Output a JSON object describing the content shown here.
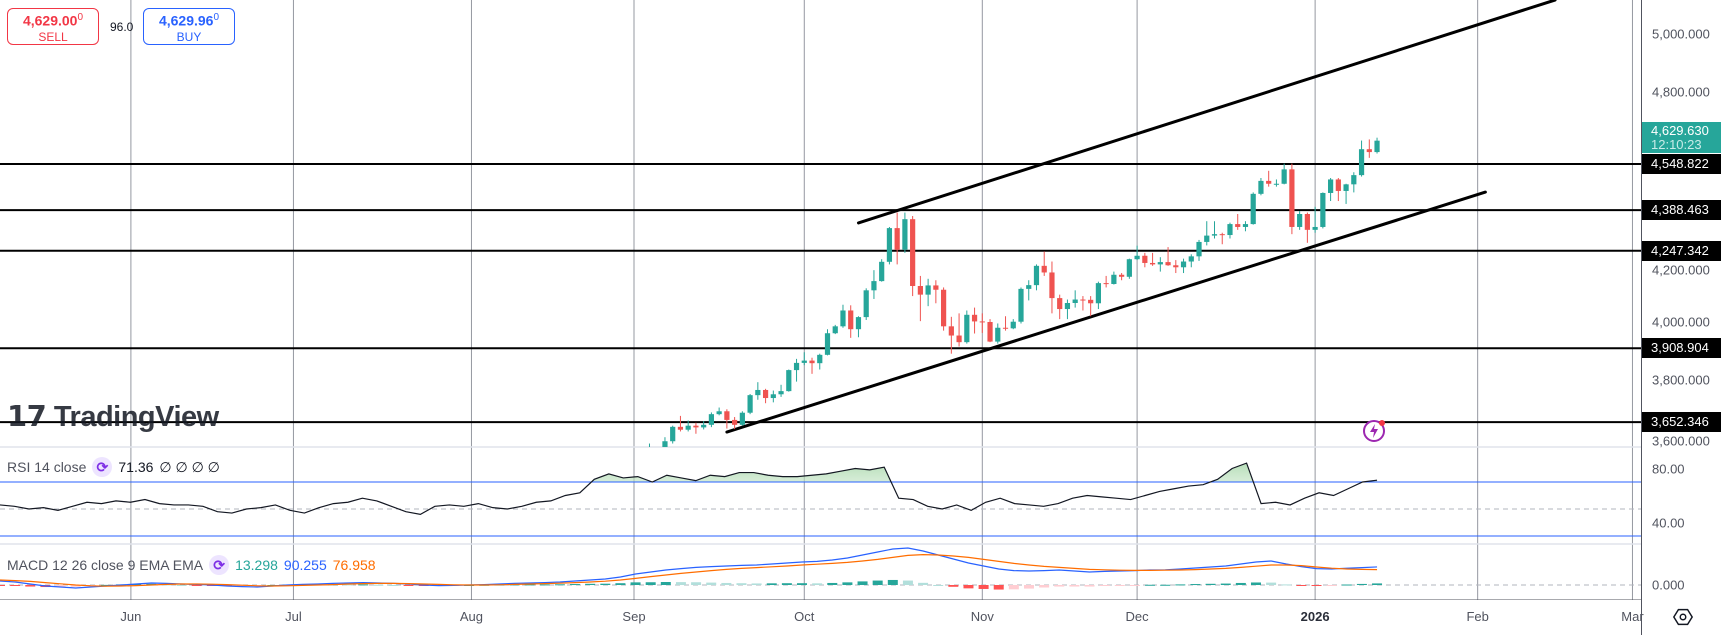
{
  "trade": {
    "sell_price": "4,629.00",
    "sell_price_sup": "0",
    "sell_label": "SELL",
    "spread": "96.0",
    "buy_price": "4,629.96",
    "buy_price_sup": "0",
    "buy_label": "BUY"
  },
  "current_price": {
    "value": "4,629.630",
    "countdown": "12:10:23",
    "color": "#26a69a"
  },
  "price_axis_ticks": [
    "5,000.000",
    "4,800.000",
    "4,200.000",
    "4,000.000",
    "3,800.000",
    "3,600.000"
  ],
  "price_axis_tick_values": [
    5000,
    4800,
    4200,
    4000,
    3800,
    3600
  ],
  "horizontal_levels": [
    {
      "value": 4548.822,
      "label": "4,548.822"
    },
    {
      "value": 4388.463,
      "label": "4,388.463"
    },
    {
      "value": 4247.342,
      "label": "4,247.342"
    },
    {
      "value": 3908.904,
      "label": "3,908.904"
    },
    {
      "value": 3652.346,
      "label": "3,652.346"
    }
  ],
  "rsi": {
    "name": "RSI 14 close",
    "value": "71.36",
    "extra": "∅ ∅ ∅ ∅",
    "axis_ticks": [
      "80.00",
      "40.00"
    ],
    "axis_tick_values": [
      80,
      40
    ],
    "bands": [
      70,
      50,
      30
    ]
  },
  "macd": {
    "name": "MACD 12 26 close 9 EMA EMA",
    "hist_value": "13.298",
    "macd_value": "90.255",
    "signal_value": "76.958",
    "axis_ticks": [
      "0.000"
    ],
    "axis_tick_values": [
      0
    ]
  },
  "time_axis": [
    {
      "label": "Jun",
      "date": "2025-06-02"
    },
    {
      "label": "Jul",
      "date": "2025-07-01"
    },
    {
      "label": "Aug",
      "date": "2025-08-01"
    },
    {
      "label": "Sep",
      "date": "2025-09-01"
    },
    {
      "label": "Oct",
      "date": "2025-10-01"
    },
    {
      "label": "Nov",
      "date": "2025-11-03"
    },
    {
      "label": "Dec",
      "date": "2025-12-01"
    },
    {
      "label": "2026",
      "date": "2026-01-02",
      "bold": true
    },
    {
      "label": "Feb",
      "date": "2026-02-02"
    },
    {
      "label": "Mar",
      "date": "2026-03-02"
    }
  ],
  "watermark": "TradingView",
  "icons": {
    "indicator": "cycle-icon",
    "alert": "lightning-icon",
    "settings": "gear-icon"
  },
  "colors": {
    "up": "#26a69a",
    "down": "#ef5350",
    "rsi_band": "#2962ff",
    "macd": "#2962ff",
    "signal": "#ff6d00",
    "sell": "#f23645",
    "buy": "#2962ff"
  },
  "chart_data": {
    "type": "candlestick",
    "price_range": [
      3600,
      5000
    ],
    "trendlines": [
      {
        "from": {
          "date": "2025-10-10",
          "price": 4344
        },
        "to": {
          "date": "2026-02-16",
          "price": 5118
        }
      },
      {
        "from": {
          "date": "2025-09-17",
          "price": 3618
        },
        "to": {
          "date": "2026-02-03",
          "price": 4451
        }
      }
    ],
    "candles": [
      [
        "2025-09-01",
        3448,
        3490,
        3436,
        3476
      ],
      [
        "2025-09-02",
        3476,
        3540,
        3470,
        3533
      ],
      [
        "2025-09-03",
        3533,
        3578,
        3525,
        3560
      ],
      [
        "2025-09-04",
        3560,
        3566,
        3511,
        3545
      ],
      [
        "2025-09-05",
        3545,
        3600,
        3540,
        3586
      ],
      [
        "2025-09-08",
        3586,
        3640,
        3578,
        3636
      ],
      [
        "2025-09-09",
        3636,
        3674,
        3620,
        3626
      ],
      [
        "2025-09-10",
        3626,
        3658,
        3620,
        3640
      ],
      [
        "2025-09-11",
        3640,
        3650,
        3612,
        3634
      ],
      [
        "2025-09-12",
        3634,
        3656,
        3627,
        3643
      ],
      [
        "2025-09-15",
        3643,
        3686,
        3635,
        3680
      ],
      [
        "2025-09-16",
        3680,
        3703,
        3676,
        3690
      ],
      [
        "2025-09-17",
        3690,
        3697,
        3630,
        3660
      ],
      [
        "2025-09-18",
        3660,
        3670,
        3628,
        3643
      ],
      [
        "2025-09-19",
        3643,
        3690,
        3640,
        3685
      ],
      [
        "2025-09-22",
        3685,
        3750,
        3680,
        3746
      ],
      [
        "2025-09-23",
        3746,
        3791,
        3730,
        3764
      ],
      [
        "2025-09-24",
        3764,
        3768,
        3718,
        3736
      ],
      [
        "2025-09-25",
        3736,
        3762,
        3721,
        3749
      ],
      [
        "2025-09-26",
        3749,
        3782,
        3740,
        3760
      ],
      [
        "2025-09-29",
        3760,
        3835,
        3758,
        3833
      ],
      [
        "2025-09-30",
        3833,
        3872,
        3793,
        3858
      ],
      [
        "2025-10-01",
        3858,
        3895,
        3850,
        3866
      ],
      [
        "2025-10-02",
        3866,
        3876,
        3820,
        3857
      ],
      [
        "2025-10-03",
        3857,
        3890,
        3835,
        3886
      ],
      [
        "2025-10-06",
        3886,
        3975,
        3884,
        3961
      ],
      [
        "2025-10-07",
        3961,
        3990,
        3958,
        3985
      ],
      [
        "2025-10-08",
        3985,
        4060,
        3980,
        4040
      ],
      [
        "2025-10-09",
        4040,
        4058,
        3945,
        3975
      ],
      [
        "2025-10-10",
        3975,
        4020,
        3947,
        4017
      ],
      [
        "2025-10-13",
        4017,
        4117,
        4007,
        4110
      ],
      [
        "2025-10-14",
        4110,
        4180,
        4080,
        4142
      ],
      [
        "2025-10-15",
        4142,
        4218,
        4140,
        4209
      ],
      [
        "2025-10-16",
        4209,
        4330,
        4200,
        4326
      ],
      [
        "2025-10-17",
        4326,
        4380,
        4200,
        4251
      ],
      [
        "2025-10-20",
        4251,
        4380,
        4240,
        4357
      ],
      [
        "2025-10-21",
        4357,
        4368,
        4090,
        4125
      ],
      [
        "2025-10-22",
        4125,
        4160,
        4003,
        4095
      ],
      [
        "2025-10-23",
        4095,
        4150,
        4055,
        4127
      ],
      [
        "2025-10-24",
        4127,
        4145,
        4065,
        4112
      ],
      [
        "2025-10-27",
        4112,
        4120,
        3970,
        3985
      ],
      [
        "2025-10-28",
        3985,
        4018,
        3890,
        3953
      ],
      [
        "2025-10-29",
        3953,
        4030,
        3915,
        3930
      ],
      [
        "2025-10-30",
        3930,
        4040,
        3925,
        4025
      ],
      [
        "2025-10-31",
        4025,
        4050,
        3960,
        4002
      ],
      [
        "2025-11-03",
        4002,
        4030,
        3962,
        4000
      ],
      [
        "2025-11-04",
        4000,
        4010,
        3930,
        3932
      ],
      [
        "2025-11-05",
        3932,
        3995,
        3925,
        3980
      ],
      [
        "2025-11-06",
        3980,
        4020,
        3970,
        3978
      ],
      [
        "2025-11-07",
        3978,
        4010,
        3975,
        4001
      ],
      [
        "2025-11-10",
        4001,
        4120,
        3995,
        4115
      ],
      [
        "2025-11-11",
        4115,
        4145,
        4075,
        4128
      ],
      [
        "2025-11-12",
        4128,
        4200,
        4110,
        4195
      ],
      [
        "2025-11-13",
        4195,
        4245,
        4160,
        4172
      ],
      [
        "2025-11-14",
        4172,
        4210,
        4030,
        4083
      ],
      [
        "2025-11-17",
        4083,
        4095,
        4010,
        4045
      ],
      [
        "2025-11-18",
        4045,
        4078,
        4010,
        4066
      ],
      [
        "2025-11-19",
        4066,
        4110,
        4050,
        4078
      ],
      [
        "2025-11-20",
        4078,
        4090,
        4040,
        4077
      ],
      [
        "2025-11-21",
        4077,
        4090,
        4020,
        4065
      ],
      [
        "2025-11-24",
        4065,
        4140,
        4045,
        4135
      ],
      [
        "2025-11-25",
        4135,
        4160,
        4120,
        4132
      ],
      [
        "2025-11-26",
        4132,
        4175,
        4130,
        4164
      ],
      [
        "2025-11-27",
        4164,
        4170,
        4145,
        4157
      ],
      [
        "2025-11-28",
        4157,
        4220,
        4150,
        4218
      ],
      [
        "2025-12-01",
        4218,
        4265,
        4215,
        4230
      ],
      [
        "2025-12-02",
        4230,
        4240,
        4190,
        4205
      ],
      [
        "2025-12-03",
        4205,
        4240,
        4195,
        4200
      ],
      [
        "2025-12-04",
        4200,
        4225,
        4175,
        4208
      ],
      [
        "2025-12-05",
        4208,
        4260,
        4195,
        4197
      ],
      [
        "2025-12-08",
        4197,
        4215,
        4170,
        4190
      ],
      [
        "2025-12-09",
        4190,
        4220,
        4170,
        4210
      ],
      [
        "2025-12-10",
        4210,
        4235,
        4190,
        4228
      ],
      [
        "2025-12-11",
        4228,
        4285,
        4212,
        4278
      ],
      [
        "2025-12-12",
        4278,
        4350,
        4266,
        4300
      ],
      [
        "2025-12-15",
        4300,
        4350,
        4290,
        4305
      ],
      [
        "2025-12-16",
        4305,
        4310,
        4270,
        4302
      ],
      [
        "2025-12-17",
        4302,
        4345,
        4290,
        4340
      ],
      [
        "2025-12-18",
        4340,
        4375,
        4320,
        4330
      ],
      [
        "2025-12-19",
        4330,
        4350,
        4315,
        4340
      ],
      [
        "2025-12-22",
        4340,
        4450,
        4338,
        4445
      ],
      [
        "2025-12-23",
        4445,
        4500,
        4440,
        4490
      ],
      [
        "2025-12-24",
        4490,
        4525,
        4470,
        4480
      ],
      [
        "2025-12-25",
        4480,
        4495,
        4470,
        4480
      ],
      [
        "2025-12-26",
        4480,
        4550,
        4478,
        4530
      ],
      [
        "2025-12-29",
        4530,
        4550,
        4305,
        4330
      ],
      [
        "2025-12-30",
        4330,
        4385,
        4320,
        4375
      ],
      [
        "2025-12-31",
        4375,
        4380,
        4275,
        4320
      ],
      [
        "2026-01-02",
        4320,
        4400,
        4310,
        4330
      ],
      [
        "2026-01-05",
        4330,
        4450,
        4325,
        4448
      ],
      [
        "2026-01-06",
        4448,
        4500,
        4420,
        4495
      ],
      [
        "2026-01-07",
        4495,
        4500,
        4420,
        4455
      ],
      [
        "2026-01-08",
        4455,
        4480,
        4410,
        4478
      ],
      [
        "2026-01-09",
        4478,
        4520,
        4450,
        4510
      ],
      [
        "2026-01-12",
        4510,
        4630,
        4505,
        4600
      ],
      [
        "2026-01-13",
        4600,
        4634,
        4570,
        4590
      ],
      [
        "2026-01-14",
        4590,
        4640,
        4585,
        4629.63
      ]
    ],
    "rsi_series": [
      53,
      52,
      50,
      51,
      49,
      52,
      55,
      54,
      56,
      55,
      57,
      54,
      53,
      53,
      52,
      48,
      47,
      50,
      51,
      53,
      49,
      47,
      51,
      54,
      55,
      58,
      56,
      52,
      48,
      46,
      52,
      53,
      52,
      54,
      51,
      50,
      52,
      55,
      56,
      60,
      62,
      72,
      76,
      73,
      74,
      70,
      75,
      73,
      71,
      75,
      74,
      77,
      77,
      75,
      74,
      74,
      75,
      76,
      78,
      80,
      79,
      81,
      58,
      57,
      52,
      50,
      53,
      49,
      55,
      58,
      54,
      53,
      52,
      54,
      58,
      60,
      59,
      58,
      57,
      60,
      63,
      65,
      67,
      68,
      72,
      80,
      84,
      54,
      55,
      53,
      58,
      62,
      60,
      65,
      70,
      71.36
    ],
    "macd_series": [
      20,
      15,
      5,
      -5,
      -10,
      -15,
      -10,
      -5,
      0,
      5,
      10,
      8,
      5,
      3,
      0,
      -5,
      -8,
      -10,
      -5,
      0,
      3,
      5,
      8,
      10,
      12,
      10,
      8,
      5,
      0,
      -3,
      -2,
      0,
      2,
      5,
      8,
      10,
      12,
      15,
      20,
      25,
      30,
      40,
      55,
      65,
      75,
      82,
      88,
      92,
      95,
      98,
      100,
      105,
      110,
      115,
      118,
      125,
      135,
      150,
      165,
      180,
      185,
      170,
      150,
      130,
      110,
      95,
      80,
      72,
      70,
      72,
      75,
      70,
      65,
      68,
      70,
      72,
      75,
      76,
      80,
      85,
      90,
      95,
      105,
      115,
      120,
      105,
      92,
      82,
      80,
      84,
      87,
      90.255
    ],
    "signal_series": [
      25,
      22,
      18,
      12,
      6,
      0,
      -4,
      -6,
      -5,
      -3,
      0,
      3,
      5,
      5,
      4,
      2,
      -1,
      -4,
      -5,
      -4,
      -2,
      0,
      2,
      5,
      7,
      8,
      8,
      7,
      5,
      3,
      1,
      0,
      0,
      1,
      3,
      5,
      7,
      9,
      12,
      15,
      19,
      25,
      33,
      42,
      50,
      58,
      65,
      72,
      78,
      83,
      87,
      91,
      95,
      100,
      104,
      108,
      113,
      120,
      128,
      138,
      148,
      152,
      150,
      145,
      138,
      128,
      118,
      108,
      100,
      93,
      88,
      83,
      78,
      76,
      74,
      73,
      73,
      74,
      75,
      77,
      80,
      83,
      88,
      94,
      100,
      100,
      97,
      90,
      84,
      80,
      78,
      76.958
    ]
  }
}
